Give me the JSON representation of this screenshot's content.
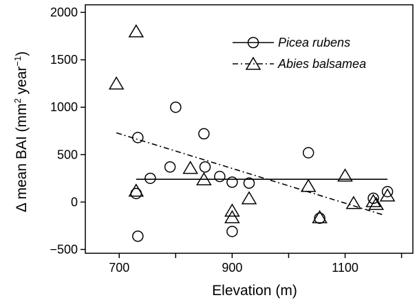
{
  "chart_data": {
    "type": "scatter",
    "xlabel": "Elevation (m)",
    "ylabel_parts": [
      "Δ mean BAI  (mm",
      "2",
      " year",
      "−1",
      ")"
    ],
    "xlim": [
      640,
      1220
    ],
    "ylim": [
      -540,
      2080
    ],
    "xticks": [
      700,
      900,
      1100
    ],
    "xtick_labels": [
      "700",
      "900",
      "1100"
    ],
    "xminor_ticks": [
      800,
      1000,
      1200
    ],
    "yticks": [
      -500,
      0,
      500,
      1000,
      1500,
      2000
    ],
    "ytick_labels": [
      "−500",
      "0",
      "500",
      "1000",
      "1500",
      "2000"
    ],
    "grid": false,
    "legend_position": "top-right",
    "series": [
      {
        "name": "Picea rubens",
        "marker": "circle",
        "points": [
          {
            "x": 730,
            "y": 90
          },
          {
            "x": 733,
            "y": 680
          },
          {
            "x": 733,
            "y": -360
          },
          {
            "x": 755,
            "y": 250
          },
          {
            "x": 790,
            "y": 370
          },
          {
            "x": 800,
            "y": 1000
          },
          {
            "x": 850,
            "y": 720
          },
          {
            "x": 852,
            "y": 370
          },
          {
            "x": 878,
            "y": 270
          },
          {
            "x": 900,
            "y": 210
          },
          {
            "x": 900,
            "y": -310
          },
          {
            "x": 930,
            "y": 200
          },
          {
            "x": 1035,
            "y": 520
          },
          {
            "x": 1055,
            "y": -170
          },
          {
            "x": 1150,
            "y": 40
          },
          {
            "x": 1175,
            "y": 110
          }
        ],
        "fit": {
          "style": "solid",
          "x": [
            730,
            1175
          ],
          "y": [
            240,
            240
          ]
        }
      },
      {
        "name": "Abies balsamea",
        "marker": "triangle",
        "points": [
          {
            "x": 695,
            "y": 1250
          },
          {
            "x": 730,
            "y": 1800
          },
          {
            "x": 730,
            "y": 120
          },
          {
            "x": 826,
            "y": 360
          },
          {
            "x": 850,
            "y": 240
          },
          {
            "x": 900,
            "y": -90
          },
          {
            "x": 900,
            "y": -160
          },
          {
            "x": 930,
            "y": 40
          },
          {
            "x": 1035,
            "y": 170
          },
          {
            "x": 1055,
            "y": -160
          },
          {
            "x": 1100,
            "y": 280
          },
          {
            "x": 1115,
            "y": -10
          },
          {
            "x": 1150,
            "y": 10
          },
          {
            "x": 1155,
            "y": -20
          },
          {
            "x": 1175,
            "y": 70
          }
        ],
        "fit": {
          "style": "dash-dot",
          "x": [
            695,
            1170
          ],
          "y": [
            730,
            -140
          ]
        }
      }
    ]
  }
}
